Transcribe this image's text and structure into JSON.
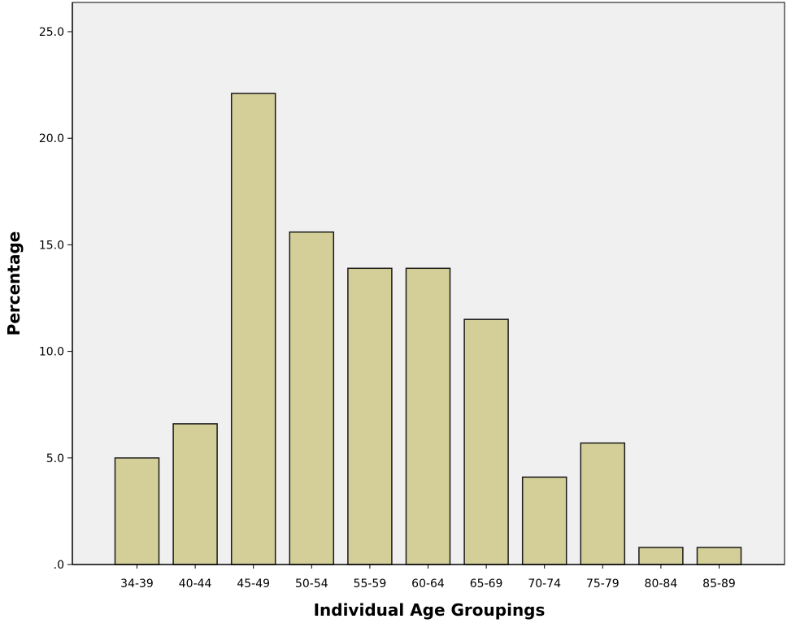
{
  "chart_data": {
    "type": "bar",
    "title": "",
    "xlabel": "Individual Age Groupings",
    "ylabel": "Percentage",
    "categories": [
      "34-39",
      "40-44",
      "45-49",
      "50-54",
      "55-59",
      "60-64",
      "65-69",
      "70-74",
      "75-79",
      "80-84",
      "85-89"
    ],
    "values": [
      5.0,
      6.6,
      22.1,
      15.6,
      13.9,
      13.9,
      11.5,
      4.1,
      5.7,
      0.8,
      0.8
    ],
    "ylim": [
      0,
      26.2
    ],
    "yticks": [
      ".0",
      "5.0",
      "10.0",
      "15.0",
      "20.0",
      "25.0"
    ],
    "ytick_values": [
      0,
      5,
      10,
      15,
      20,
      25
    ],
    "grid": false,
    "colors": {
      "bar_fill": "#d4cf98",
      "bar_stroke": "#1a1a1a",
      "plot_background": "#f0f0f0",
      "axis": "#000000"
    }
  }
}
